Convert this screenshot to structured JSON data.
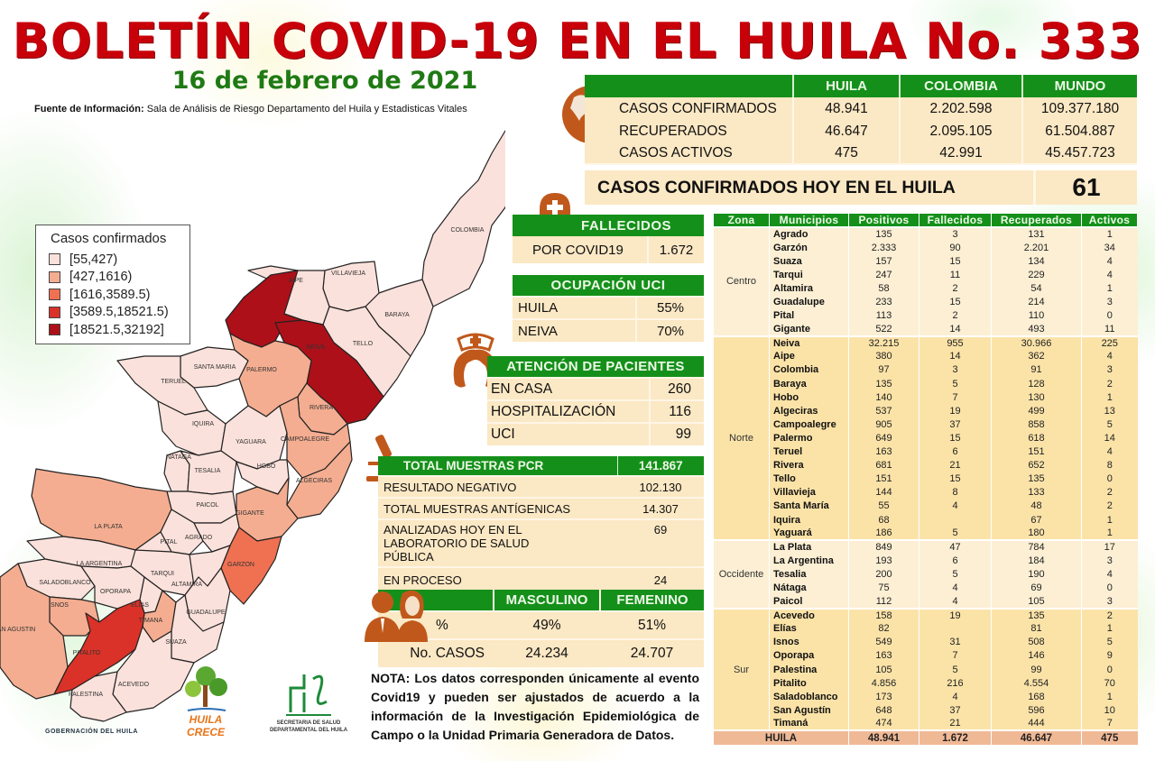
{
  "header": {
    "title": "BOLETÍN COVID-19 EN EL HUILA No. 333",
    "date": "16 de febrero de 2021",
    "source_label": "Fuente de Información:",
    "source_text": "Sala de Análisis de Riesgo Departamento del Huila y Estadisticas Vitales"
  },
  "summary": {
    "columns": [
      "",
      "HUILA",
      "COLOMBIA",
      "MUNDO"
    ],
    "rows": [
      {
        "label": "CASOS CONFIRMADOS",
        "huila": "48.941",
        "colombia": "2.202.598",
        "mundo": "109.377.180"
      },
      {
        "label": "RECUPERADOS",
        "huila": "46.647",
        "colombia": "2.095.105",
        "mundo": "61.504.887"
      },
      {
        "label": "CASOS ACTIVOS",
        "huila": "475",
        "colombia": "42.991",
        "mundo": "45.457.723"
      }
    ],
    "today_label": "CASOS CONFIRMADOS  HOY EN EL HUILA",
    "today_value": "61",
    "icon": "globe-icon"
  },
  "fallecidos": {
    "title": "FALLECIDOS",
    "label": "POR COVID19",
    "value": "1.672",
    "icon": "tombstone-icon"
  },
  "uci": {
    "title": "OCUPACIÓN  UCI",
    "rows": [
      {
        "label": "HUILA",
        "value": "55%"
      },
      {
        "label": "NEIVA",
        "value": "70%"
      }
    ]
  },
  "atencion": {
    "title": "ATENCIÓN DE PACIENTES",
    "rows": [
      {
        "label": "EN CASA",
        "value": "260"
      },
      {
        "label": "HOSPITALIZACIÓN",
        "value": "116"
      },
      {
        "label": "UCI",
        "value": "99"
      }
    ],
    "icon": "nurse-icon"
  },
  "pcr": {
    "title": "TOTAL MUESTRAS  PCR",
    "total": "141.867",
    "rows": [
      {
        "label": "RESULTADO  NEGATIVO",
        "value": "102.130"
      },
      {
        "label": "TOTAL  MUESTRAS  ANTÍGENICAS",
        "value": "14.307"
      },
      {
        "label": "ANALIZADAS HOY EN EL LABORATORIO DE SALUD PÚBLICA",
        "value": "69"
      },
      {
        "label": "EN PROCESO",
        "value": "24"
      }
    ],
    "icon": "microscope-icon"
  },
  "genero": {
    "columns": [
      "",
      "MASCULINO",
      "FEMENINO"
    ],
    "rows": [
      {
        "label": "%",
        "masculino": "49%",
        "femenino": "51%"
      },
      {
        "label": "No. CASOS",
        "masculino": "24.234",
        "femenino": "24.707"
      }
    ],
    "icon": "people-icon"
  },
  "nota": "NOTA: Los datos corresponden únicamente al evento Covid19 y pueden ser ajustados de acuerdo a la información de la Investigación Epidemiológica de Campo o la Unidad Primaria Generadora de Datos.",
  "municipios": {
    "columns": [
      "Zona",
      "Municipios",
      "Positivos",
      "Fallecidos",
      "Recuperados",
      "Activos"
    ],
    "zones": [
      {
        "zona": "Centro",
        "rows": [
          [
            "Agrado",
            "135",
            "3",
            "131",
            "1"
          ],
          [
            "Garzón",
            "2.333",
            "90",
            "2.201",
            "34"
          ],
          [
            "Suaza",
            "157",
            "15",
            "134",
            "4"
          ],
          [
            "Tarqui",
            "247",
            "11",
            "229",
            "4"
          ],
          [
            "Altamira",
            "58",
            "2",
            "54",
            "1"
          ],
          [
            "Guadalupe",
            "233",
            "15",
            "214",
            "3"
          ],
          [
            "Pital",
            "113",
            "2",
            "110",
            "0"
          ],
          [
            "Gigante",
            "522",
            "14",
            "493",
            "11"
          ]
        ]
      },
      {
        "zona": "Norte",
        "rows": [
          [
            "Neiva",
            "32.215",
            "955",
            "30.966",
            "225"
          ],
          [
            "Aipe",
            "380",
            "14",
            "362",
            "4"
          ],
          [
            "Colombia",
            "97",
            "3",
            "91",
            "3"
          ],
          [
            "Baraya",
            "135",
            "5",
            "128",
            "2"
          ],
          [
            "Hobo",
            "140",
            "7",
            "130",
            "1"
          ],
          [
            "Algeciras",
            "537",
            "19",
            "499",
            "13"
          ],
          [
            "Campoalegre",
            "905",
            "37",
            "858",
            "5"
          ],
          [
            "Palermo",
            "649",
            "15",
            "618",
            "14"
          ],
          [
            "Teruel",
            "163",
            "6",
            "151",
            "4"
          ],
          [
            "Rivera",
            "681",
            "21",
            "652",
            "8"
          ],
          [
            "Tello",
            "151",
            "15",
            "135",
            "0"
          ],
          [
            "Villavieja",
            "144",
            "8",
            "133",
            "2"
          ],
          [
            "Santa María",
            "55",
            "4",
            "48",
            "2"
          ],
          [
            "Iquira",
            "68",
            "",
            "67",
            "1"
          ],
          [
            "Yaguará",
            "186",
            "5",
            "180",
            "1"
          ]
        ]
      },
      {
        "zona": "Occidente",
        "rows": [
          [
            "La Plata",
            "849",
            "47",
            "784",
            "17"
          ],
          [
            "La Argentina",
            "193",
            "6",
            "184",
            "3"
          ],
          [
            "Tesalia",
            "200",
            "5",
            "190",
            "4"
          ],
          [
            "Nátaga",
            "75",
            "4",
            "69",
            "0"
          ],
          [
            "Paicol",
            "112",
            "4",
            "105",
            "3"
          ]
        ]
      },
      {
        "zona": "Sur",
        "rows": [
          [
            "Acevedo",
            "158",
            "19",
            "135",
            "2"
          ],
          [
            "Elías",
            "82",
            "",
            "81",
            "1"
          ],
          [
            "Isnos",
            "549",
            "31",
            "508",
            "5"
          ],
          [
            "Oporapa",
            "163",
            "7",
            "146",
            "9"
          ],
          [
            "Palestina",
            "105",
            "5",
            "99",
            "0"
          ],
          [
            "Pitalito",
            "4.856",
            "216",
            "4.554",
            "70"
          ],
          [
            "Saladoblanco",
            "173",
            "4",
            "168",
            "1"
          ],
          [
            "San Agustín",
            "648",
            "37",
            "596",
            "10"
          ],
          [
            "Timaná",
            "474",
            "21",
            "444",
            "7"
          ]
        ]
      }
    ],
    "total": [
      "HUILA",
      "48.941",
      "1.672",
      "46.647",
      "475"
    ]
  },
  "map": {
    "legend_title": "Casos confirmados",
    "legend": [
      {
        "label": "[55,427)",
        "color": "#fbe1db"
      },
      {
        "label": "[427,1616)",
        "color": "#f4ad90"
      },
      {
        "label": "[1616,3589.5)",
        "color": "#ef7152"
      },
      {
        "label": "[3589.5,18521.5)",
        "color": "#da3228"
      },
      {
        "label": "[18521.5,32192]",
        "color": "#ad1019"
      }
    ],
    "labels": [
      "COLOMBIA",
      "VILLAVIEJA",
      "BARAYA",
      "AIPE",
      "TELLO",
      "NEIVA",
      "SANTA MARIA",
      "PALERMO",
      "TERUEL",
      "RIVERA",
      "IQUIRA",
      "YAGUARA",
      "CAMPOALEGRE",
      "NATAGA",
      "TESALIA",
      "HOBO",
      "ALGECIRAS",
      "PAICOL",
      "GIGANTE",
      "LA PLATA",
      "PITAL",
      "AGRADO",
      "GARZON",
      "LA ARGENTINA",
      "TARQUI",
      "SALADOBLANCO",
      "OPORAPA",
      "ALTAMIRA",
      "ISNOS",
      "ELIAS",
      "GUADALUPE",
      "TIMANA",
      "AN AGUSTIN",
      "PITALITO",
      "SUAZA",
      "ACEVEDO",
      "PALESTINA"
    ]
  },
  "logos": {
    "gobernacion": "GOBERNACIÓN DEL HUILA",
    "crece_line1": "HUILA",
    "crece_line2": "CRECE",
    "secretaria_line1": "SECRETARIA DE SALUD",
    "secretaria_line2": "DEPARTAMENTAL DEL HUILA"
  },
  "colors": {
    "title_red": "#c8000a",
    "date_green": "#1f7a14",
    "header_green": "#14901a",
    "cream": "#fbe8c4",
    "icon_orange": "#c0581c",
    "total_row": "#f0b996"
  }
}
